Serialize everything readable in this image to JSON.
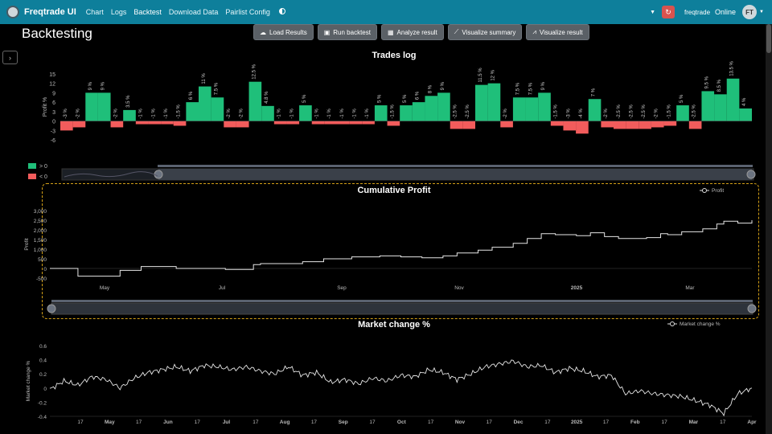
{
  "app": {
    "title": "Freqtrade UI"
  },
  "nav": {
    "links": [
      "Chart",
      "Logs",
      "Backtest",
      "Download Data",
      "Pairlist Config"
    ],
    "bot_name": "freqtrade",
    "status": "Online",
    "user_initials": "FT"
  },
  "page": {
    "title": "Backtesting"
  },
  "toolbar": {
    "load": "Load Results",
    "run": "Run backtest",
    "analyze": "Analyze result",
    "summary": "Visualize summary",
    "result": "Visualize result"
  },
  "colors": {
    "navbar": "#0e7f9b",
    "positive": "#1fbf7a",
    "negative": "#f25c5c",
    "highlight": "#d4a017"
  },
  "chart_data": [
    {
      "type": "bar",
      "title": "Trades log",
      "ylabel": "Profit %",
      "yticks": [
        15,
        12,
        9,
        6,
        3,
        0,
        -3,
        -6
      ],
      "ylim": [
        -7,
        16
      ],
      "legend": [
        "> 0",
        "< 0"
      ],
      "values": [
        -3,
        -2,
        9,
        9,
        -2,
        3.5,
        -1,
        -1,
        -1,
        -1.5,
        6,
        11,
        7.5,
        -2,
        -2,
        12.5,
        4.8,
        -1,
        -1,
        5,
        -1,
        -1,
        -1,
        -1,
        -1,
        5,
        -1.5,
        5,
        6,
        8,
        9,
        -2.5,
        -2.5,
        11.5,
        12,
        -2,
        7.5,
        7.5,
        9,
        -1.5,
        -3,
        -4,
        7,
        -2,
        -2.5,
        -2.5,
        -2.5,
        -2,
        -1.5,
        5,
        -2.5,
        9.5,
        8.5,
        13.5,
        4
      ],
      "bar_labels": [
        "-3 %",
        "-2 %",
        "9 %",
        "9 %",
        "-2 %",
        "3.5 %",
        "-1 %",
        "-1 %",
        "-1 %",
        "-1.5 %",
        "6 %",
        "11 %",
        "7.5 %",
        "-2 %",
        "-2 %",
        "12.5 %",
        "4.8 %",
        "-1 %",
        "-1 %",
        "5 %",
        "-1 %",
        "-1 %",
        "-1 %",
        "-1 %",
        "-1 %",
        "5 %",
        "-1.5 %",
        "5 %",
        "6 %",
        "8 %",
        "9 %",
        "-2.5 %",
        "-2.5 %",
        "11.5 %",
        "12 %",
        "-2 %",
        "7.5 %",
        "7.5 %",
        "9 %",
        "-1.5 %",
        "-3 %",
        "-4 %",
        "7 %",
        "-2 %",
        "-2.5 %",
        "-2.5 %",
        "-2.5 %",
        "-2 %",
        "-1.5 %",
        "5 %",
        "-2.5 %",
        "9.5 %",
        "8.5 %",
        "13.5 %",
        "4 %"
      ]
    },
    {
      "type": "line",
      "title": "Cumulative Profit",
      "ylabel": "Profit",
      "legend": [
        "Profit"
      ],
      "yticks": [
        "3,000",
        "2,500",
        "2,000",
        "1,500",
        "1,000",
        "500",
        "0",
        "-500"
      ],
      "ylim": [
        -500,
        3000
      ],
      "xticks": [
        "May",
        "Jul",
        "Sep",
        "Nov",
        "2025",
        "Mar"
      ],
      "x": [
        0,
        0.04,
        0.1,
        0.13,
        0.18,
        0.25,
        0.29,
        0.3,
        0.36,
        0.39,
        0.43,
        0.47,
        0.5,
        0.53,
        0.56,
        0.58,
        0.61,
        0.63,
        0.66,
        0.68,
        0.7,
        0.72,
        0.75,
        0.77,
        0.79,
        0.81,
        0.85,
        0.87,
        0.88,
        0.9,
        0.93,
        0.95,
        0.96,
        0.98,
        1.0
      ],
      "values": [
        0,
        -400,
        -100,
        100,
        0,
        -50,
        200,
        250,
        350,
        500,
        600,
        650,
        600,
        550,
        650,
        800,
        950,
        1100,
        1300,
        1550,
        1800,
        1750,
        1700,
        1850,
        1650,
        1550,
        1600,
        1800,
        1750,
        1900,
        2050,
        2300,
        2450,
        2350,
        2500
      ]
    },
    {
      "type": "line",
      "title": "Market change %",
      "ylabel": "Market change %",
      "legend": [
        "Market change %"
      ],
      "yticks": [
        "0.6",
        "0.4",
        "0.2",
        "0",
        "-0.2",
        "-0.4"
      ],
      "ylim": [
        -0.4,
        0.6
      ],
      "xticks": [
        "17",
        "May",
        "17",
        "Jun",
        "17",
        "Jul",
        "17",
        "Aug",
        "17",
        "Sep",
        "17",
        "Oct",
        "17",
        "Nov",
        "17",
        "Dec",
        "17",
        "2025",
        "17",
        "Feb",
        "17",
        "Mar",
        "17",
        "Apr"
      ],
      "x": [
        0,
        0.02,
        0.04,
        0.06,
        0.08,
        0.1,
        0.12,
        0.14,
        0.16,
        0.18,
        0.2,
        0.22,
        0.24,
        0.26,
        0.28,
        0.3,
        0.32,
        0.34,
        0.36,
        0.38,
        0.4,
        0.42,
        0.44,
        0.46,
        0.48,
        0.5,
        0.52,
        0.54,
        0.56,
        0.58,
        0.6,
        0.62,
        0.64,
        0.66,
        0.68,
        0.7,
        0.72,
        0.74,
        0.76,
        0.78,
        0.8,
        0.82,
        0.84,
        0.86,
        0.88,
        0.9,
        0.92,
        0.94,
        0.96,
        0.98,
        1.0
      ],
      "values": [
        -0.02,
        0.1,
        0.04,
        0.16,
        0.12,
        0.0,
        0.14,
        0.22,
        0.26,
        0.3,
        0.24,
        0.32,
        0.3,
        0.26,
        0.3,
        0.24,
        0.2,
        0.3,
        0.18,
        0.22,
        0.08,
        0.12,
        0.06,
        0.14,
        0.1,
        0.18,
        0.16,
        0.26,
        0.22,
        0.12,
        0.2,
        0.3,
        0.34,
        0.38,
        0.3,
        0.32,
        0.22,
        0.28,
        0.24,
        0.16,
        0.18,
        -0.08,
        -0.04,
        -0.08,
        -0.1,
        -0.12,
        -0.18,
        -0.24,
        -0.36,
        -0.08,
        0.0
      ]
    }
  ]
}
